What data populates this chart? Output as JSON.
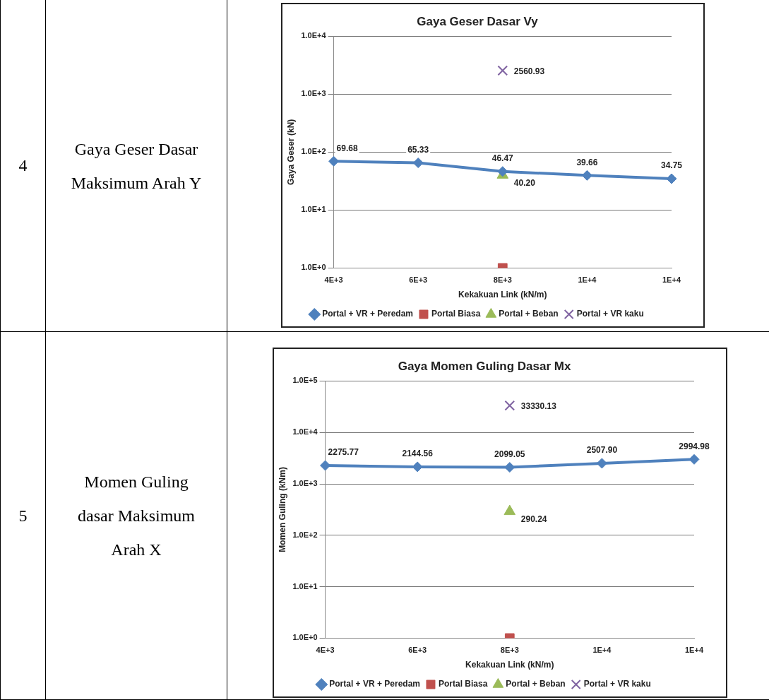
{
  "chart_data": [
    {
      "type": "line",
      "title": "Gaya Geser Dasar Vy",
      "xlabel": "Kekakuan Link (kN/m)",
      "ylabel": "Gaya Geser (kN)",
      "annotations": [
        "4",
        "Gaya Geser Dasar Maksimum Arah Y"
      ],
      "categories": [
        "4E+3",
        "6E+3",
        "8E+3",
        "1E+4",
        "1E+4"
      ],
      "log": "y",
      "ylim": [
        1,
        10000
      ],
      "yticks": [
        {
          "value": 1,
          "label": "1.0E+0"
        },
        {
          "value": 10,
          "label": "1.0E+1"
        },
        {
          "value": 100,
          "label": "1.0E+2"
        },
        {
          "value": 1000,
          "label": "1.0E+3"
        },
        {
          "value": 10000,
          "label": "1.0E+4"
        }
      ],
      "grid": "y",
      "legend": "bottom",
      "series": [
        {
          "name": "Portal + VR + Peredam",
          "color": "#4f81bd",
          "marker": "diamond",
          "values": [
            69.68,
            65.33,
            46.47,
            39.66,
            34.75
          ],
          "value_labels": [
            "69.68",
            "65.33",
            "46.47",
            "39.66",
            "34.75"
          ]
        },
        {
          "name": "Portal Biasa",
          "color": "#c0504d",
          "marker": "square",
          "values": [
            null,
            null,
            1,
            null,
            null
          ]
        },
        {
          "name": "Portal + Beban",
          "color": "#9bbb59",
          "marker": "triangle",
          "values": [
            null,
            null,
            40.2,
            null,
            null
          ],
          "value_labels": [
            null,
            null,
            "40.20",
            null,
            null
          ]
        },
        {
          "name": "Portal + VR kaku",
          "color": "#8064a2",
          "marker": "cross",
          "values": [
            null,
            null,
            2560.93,
            null,
            null
          ],
          "value_labels": [
            null,
            null,
            "2560.93",
            null,
            null
          ]
        }
      ]
    },
    {
      "type": "line",
      "title": "Gaya Momen Guling Dasar Mx",
      "xlabel": "Kekakuan Link (kN/m)",
      "ylabel": "Momen Guling (kNm)",
      "annotations": [
        "5",
        "Momen Guling dasar Maksimum Arah X"
      ],
      "categories": [
        "4E+3",
        "6E+3",
        "8E+3",
        "1E+4",
        "1E+4"
      ],
      "log": "y",
      "ylim": [
        1,
        100000
      ],
      "yticks": [
        {
          "value": 1,
          "label": "1.0E+0"
        },
        {
          "value": 10,
          "label": "1.0E+1"
        },
        {
          "value": 100,
          "label": "1.0E+2"
        },
        {
          "value": 1000,
          "label": "1.0E+3"
        },
        {
          "value": 10000,
          "label": "1.0E+4"
        },
        {
          "value": 100000,
          "label": "1.0E+5"
        }
      ],
      "grid": "y",
      "legend": "bottom",
      "series": [
        {
          "name": "Portal + VR + Peredam",
          "color": "#4f81bd",
          "marker": "diamond",
          "values": [
            2275.77,
            2144.56,
            2099.05,
            2507.9,
            2994.98
          ],
          "value_labels": [
            "2275.77",
            "2144.56",
            "2099.05",
            "2507.90",
            "2994.98"
          ]
        },
        {
          "name": "Portal Biasa",
          "color": "#c0504d",
          "marker": "square",
          "values": [
            null,
            null,
            1,
            null,
            null
          ]
        },
        {
          "name": "Portal + Beban",
          "color": "#9bbb59",
          "marker": "triangle",
          "values": [
            null,
            null,
            290.24,
            null,
            null
          ],
          "value_labels": [
            null,
            null,
            "290.24",
            null,
            null
          ]
        },
        {
          "name": "Portal + VR kaku",
          "color": "#8064a2",
          "marker": "cross",
          "values": [
            null,
            null,
            33330.13,
            null,
            null
          ],
          "value_labels": [
            null,
            null,
            "33330.13",
            null,
            null
          ]
        }
      ]
    }
  ]
}
